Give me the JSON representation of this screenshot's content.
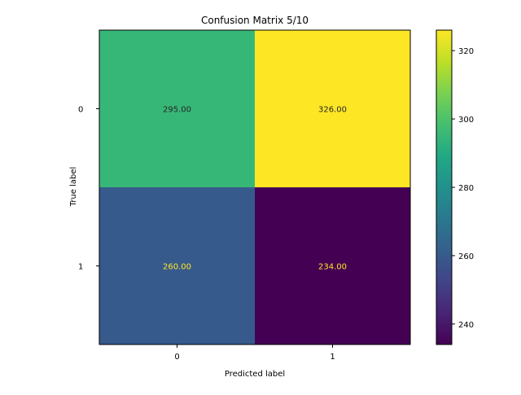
{
  "chart_data": {
    "type": "heatmap",
    "title": "Confusion Matrix 5/10",
    "xlabel": "Predicted label",
    "ylabel": "True label",
    "x_categories": [
      "0",
      "1"
    ],
    "y_categories": [
      "0",
      "1"
    ],
    "values": [
      [
        295.0,
        326.0
      ],
      [
        260.0,
        234.0
      ]
    ],
    "cell_labels": [
      [
        "295.00",
        "326.00"
      ],
      [
        "260.00",
        "234.00"
      ]
    ],
    "colormap": "viridis",
    "colorbar": {
      "min": 234,
      "max": 326,
      "ticks": [
        240,
        260,
        280,
        300,
        320
      ],
      "tick_labels": [
        "240",
        "260",
        "280",
        "300",
        "320"
      ]
    },
    "text_colors": {
      "on_dark": "#fde725",
      "on_light": "#262626"
    },
    "grid": false
  }
}
